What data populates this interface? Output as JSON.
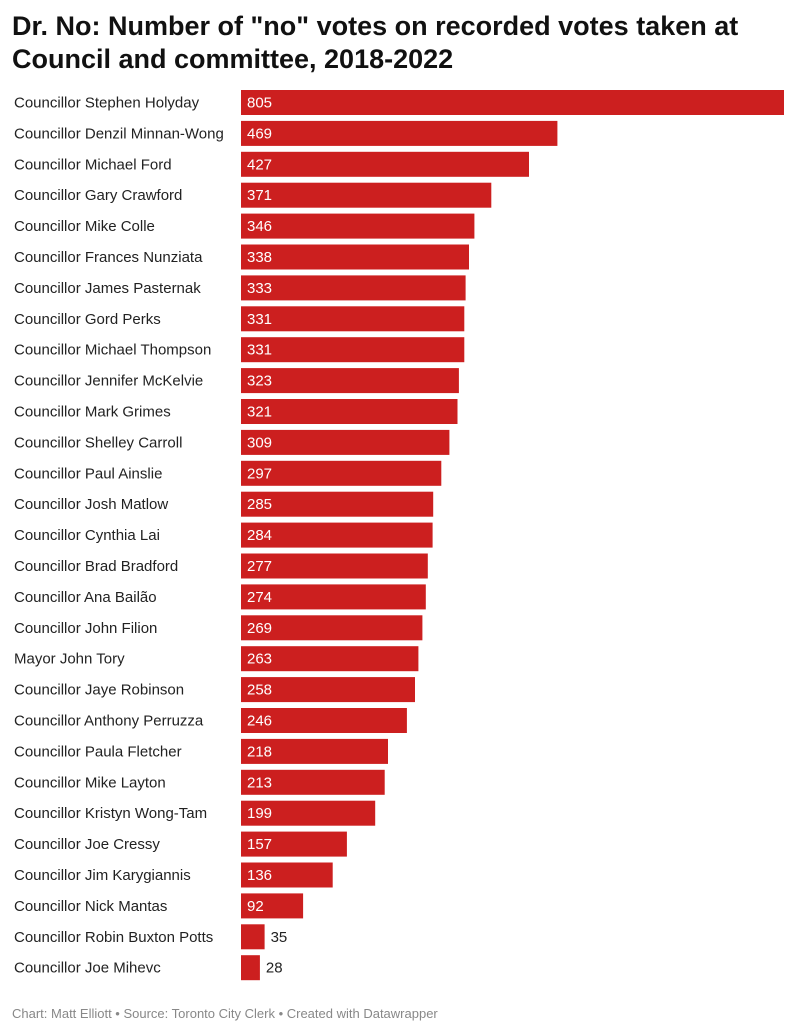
{
  "chart_data": {
    "type": "bar",
    "orientation": "horizontal",
    "title": "Dr. No: Number of \"no\" votes on recorded votes taken at Council and committee, 2018-2022",
    "categories": [
      "Councillor Stephen Holyday",
      "Councillor Denzil Minnan-Wong",
      "Councillor Michael Ford",
      "Councillor Gary Crawford",
      "Councillor Mike Colle",
      "Councillor Frances Nunziata",
      "Councillor James Pasternak",
      "Councillor Gord Perks",
      "Councillor Michael Thompson",
      "Councillor Jennifer McKelvie",
      "Councillor Mark Grimes",
      "Councillor Shelley Carroll",
      "Councillor Paul Ainslie",
      "Councillor Josh Matlow",
      "Councillor Cynthia Lai",
      "Councillor Brad Bradford",
      "Councillor Ana Bailão",
      "Councillor John Filion",
      "Mayor John Tory",
      "Councillor Jaye Robinson",
      "Councillor Anthony Perruzza",
      "Councillor Paula Fletcher",
      "Councillor Mike Layton",
      "Councillor Kristyn Wong-Tam",
      "Councillor Joe Cressy",
      "Councillor Jim Karygiannis",
      "Councillor Nick Mantas",
      "Councillor Robin Buxton Potts",
      "Councillor Joe Mihevc"
    ],
    "values": [
      805,
      469,
      427,
      371,
      346,
      338,
      333,
      331,
      331,
      323,
      321,
      309,
      297,
      285,
      284,
      277,
      274,
      269,
      263,
      258,
      246,
      218,
      213,
      199,
      157,
      136,
      92,
      35,
      28
    ],
    "xlim": [
      0,
      805
    ],
    "grid": false,
    "data_labels": true,
    "bar_color": "#cc1f1f"
  },
  "footer": {
    "text": "Chart: Matt Elliott • Source: Toronto City Clerk • Created with Datawrapper"
  }
}
